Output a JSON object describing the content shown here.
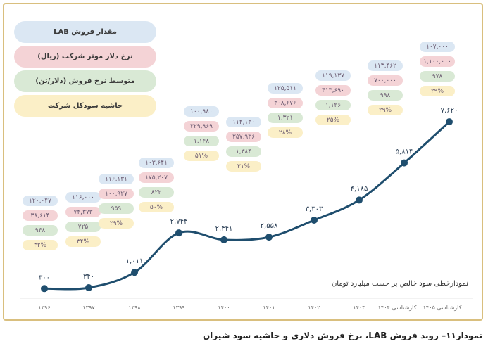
{
  "caption": "نمودار۱۱– روند فروش LAB، نرخ فروش دلاری و حاشیه سود شیران",
  "legend": [
    {
      "label": "مقدار فروش LAB",
      "color": "#dbe7f3"
    },
    {
      "label": "نرخ دلار موثر شرکت (ریال)",
      "color": "#f4d3d6"
    },
    {
      "label": "متوسط نرخ فروش (دلار/تن)",
      "color": "#d9e9d5"
    },
    {
      "label": "حاشیه سودکل شرکت",
      "color": "#fbefc7"
    }
  ],
  "chart_data": {
    "type": "line",
    "title": "نمودارخطی سود خالص بر حسب میلیارد تومان",
    "categories": [
      "۱۳۹۶",
      "۱۳۹۷",
      "۱۳۹۸",
      "۱۳۹۹",
      "۱۴۰۰",
      "۱۴۰۱",
      "۱۴۰۲",
      "۱۴۰۳",
      "کارشناسی ۱۴۰۴",
      "کارشناسی ۱۴۰۵"
    ],
    "values": [
      300,
      340,
      1011,
      2744,
      2441,
      2558,
      3303,
      4185,
      5814,
      7620
    ],
    "value_labels": [
      "۳۰۰",
      "۳۴۰",
      "۱,۰۱۱",
      "۲,۷۴۴",
      "۲,۴۴۱",
      "۲,۵۵۸",
      "۳,۳۰۳",
      "۴,۱۸۵",
      "۵,۸۱۴",
      "۷,۶۲۰"
    ],
    "line_color": "#1f4e6e",
    "ylim": [
      0,
      8000
    ],
    "stacks": [
      [
        "۱۲۰,۰۴۷",
        "۳۸,۶۱۴",
        "۹۴۸",
        "۳۲%"
      ],
      [
        "۱۱۶,۰۰۰",
        "۷۴,۳۷۳",
        "۷۲۵",
        "۳۴%"
      ],
      [
        "۱۱۶,۱۳۱",
        "۱۰۰,۹۲۷",
        "۹۵۹",
        "۲۹%"
      ],
      [
        "۱۰۳,۶۴۱",
        "۱۷۵,۲۰۷",
        "۸۲۲",
        "۵۰%"
      ],
      [
        "۱۰۰,۹۸۰",
        "۲۲۹,۹۶۹",
        "۱,۱۴۸",
        "۵۱%"
      ],
      [
        "۱۱۴,۱۳۰",
        "۲۵۷,۹۳۶",
        "۱,۳۸۴",
        "۳۱%"
      ],
      [
        "۱۲۵,۵۱۱",
        "۳۰۸,۶۷۶",
        "۱,۳۲۱",
        "۲۸%"
      ],
      [
        "۱۱۹,۱۳۷",
        "۴۱۳,۶۹۰",
        "۱,۱۲۶",
        "۲۵%"
      ],
      [
        "۱۱۳,۴۶۲",
        "۷۰۰,۰۰۰",
        "۹۹۸",
        "۲۹%"
      ],
      [
        "۱۰۷,۰۰۰",
        "۱,۱۰۰,۰۰۰",
        "۹۷۸",
        "۲۹%"
      ]
    ]
  }
}
